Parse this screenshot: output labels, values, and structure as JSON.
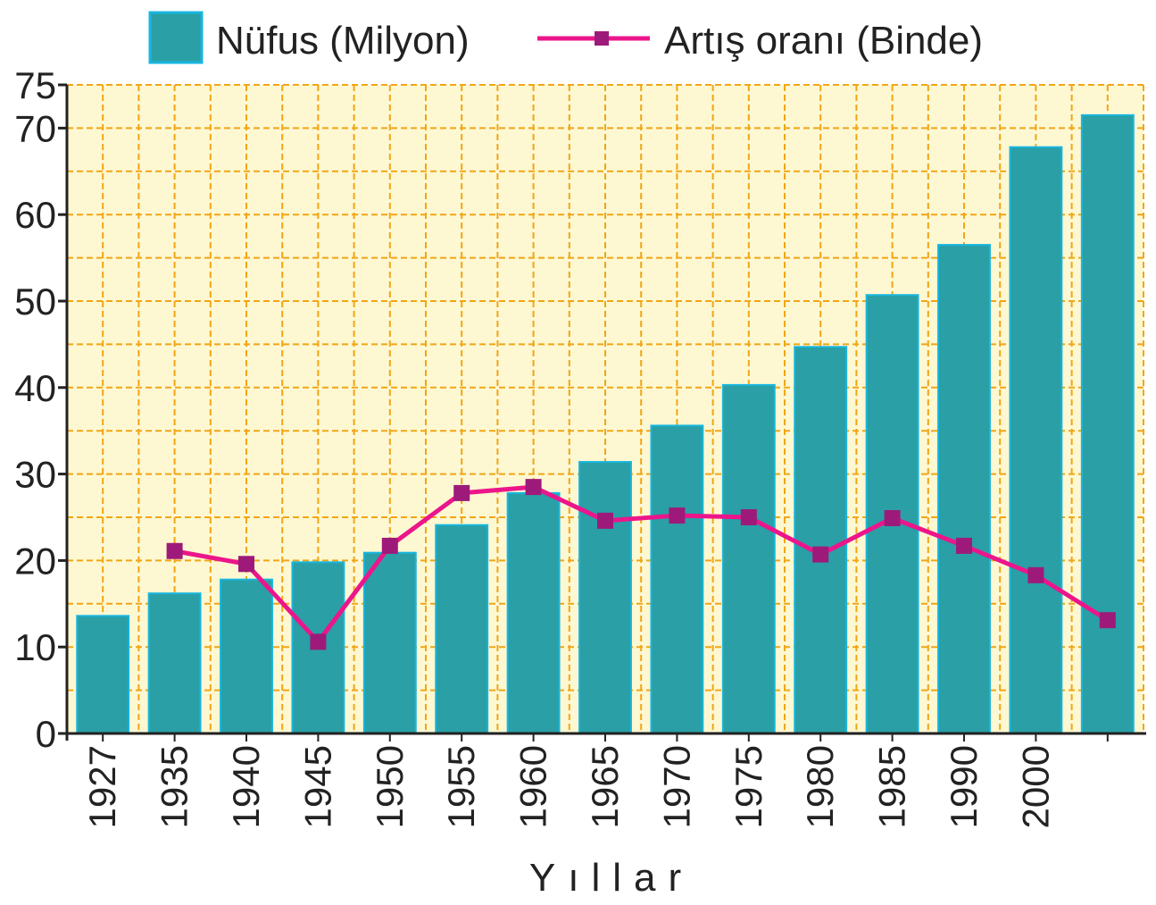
{
  "colors": {
    "plot_background": "#fdf8d2",
    "grid": "#f2a516",
    "bar_fill": "#2a9fa5",
    "bar_stroke": "#18b6df",
    "line": "#ec158b",
    "marker": "#9e1a7a",
    "axis": "#222222",
    "text": "#222222"
  },
  "chart_data": {
    "type": "bar",
    "title": "",
    "xlabel": "Yıllar",
    "ylabel": "",
    "ylim": [
      0,
      75
    ],
    "yticks": [
      0,
      10,
      20,
      30,
      40,
      50,
      60,
      70,
      75
    ],
    "grid": true,
    "legend_position": "top",
    "categories": [
      "1927",
      "1935",
      "1940",
      "1945",
      "1950",
      "1955",
      "1960",
      "1965",
      "1970",
      "1975",
      "1980",
      "1985",
      "1990",
      "2000",
      ""
    ],
    "series": [
      {
        "name": "Nüfus (Milyon)",
        "type": "bar",
        "values": [
          13.6,
          16.2,
          17.8,
          19.8,
          20.9,
          24.1,
          27.8,
          31.4,
          35.6,
          40.3,
          44.7,
          50.7,
          56.5,
          67.8,
          71.5
        ]
      },
      {
        "name": "Artış oranı (Binde)",
        "type": "line",
        "values": [
          null,
          21.1,
          19.6,
          10.6,
          21.7,
          27.8,
          28.5,
          24.6,
          25.2,
          25.0,
          20.7,
          24.9,
          21.7,
          18.3,
          13.1
        ]
      }
    ]
  }
}
